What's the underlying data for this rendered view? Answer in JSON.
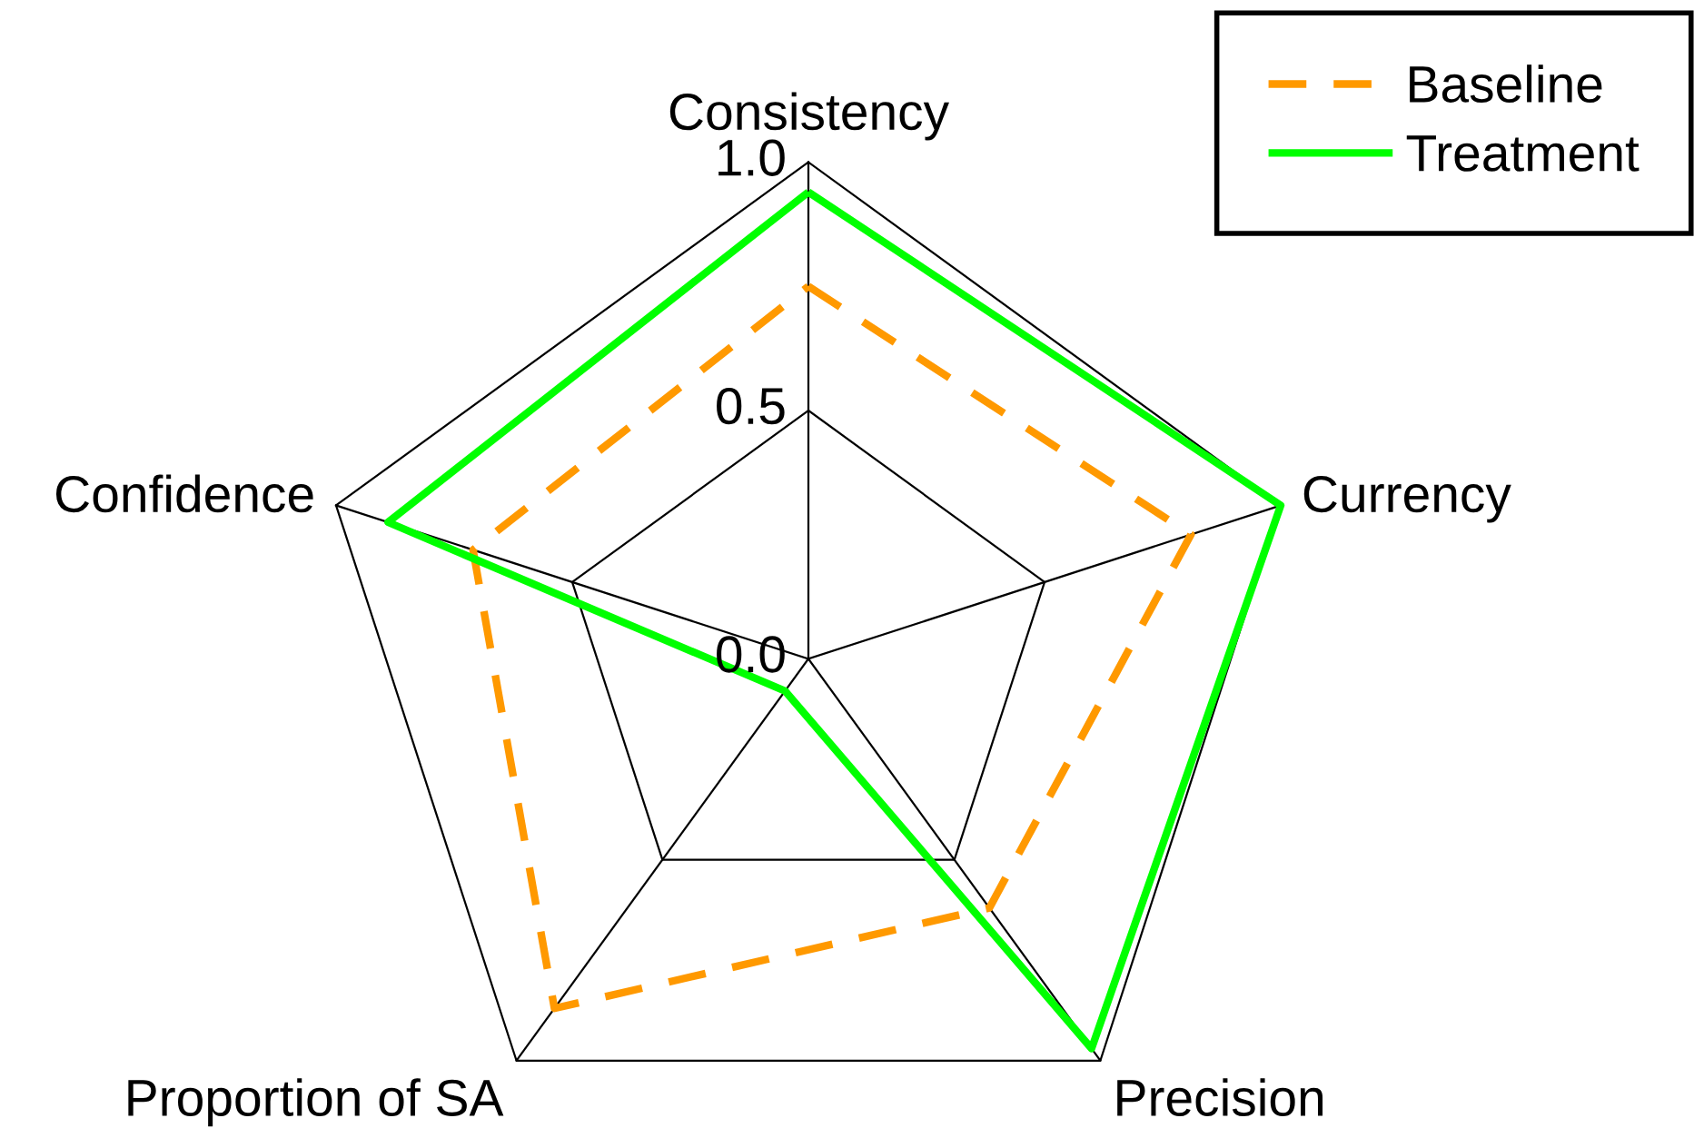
{
  "chart_data": {
    "type": "radar",
    "categories": [
      "Consistency",
      "Currency",
      "Precision",
      "Proportion of SA",
      "Confidence"
    ],
    "series": [
      {
        "name": "Baseline",
        "color": "#ff9900",
        "line_style": "dashed",
        "values": [
          0.75,
          0.81,
          0.62,
          0.87,
          0.71
        ]
      },
      {
        "name": "Treatment",
        "color": "#00ff00",
        "line_style": "solid",
        "values": [
          0.94,
          1.0,
          0.97,
          0.08,
          0.89
        ]
      }
    ],
    "ylim": [
      0,
      1
    ],
    "yticks": [
      {
        "value": 0,
        "label": "0.0"
      },
      {
        "value": 0.5,
        "label": "0.5"
      },
      {
        "value": 1,
        "label": "1.0"
      }
    ],
    "grid": true,
    "legend": "top right"
  }
}
